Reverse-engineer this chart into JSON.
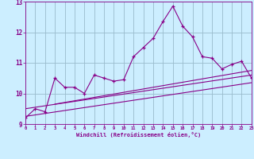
{
  "xlabel": "Windchill (Refroidissement éolien,°C)",
  "xlim": [
    0,
    23
  ],
  "ylim": [
    9.0,
    13.0
  ],
  "yticks": [
    9,
    10,
    11,
    12,
    13
  ],
  "xticks": [
    0,
    1,
    2,
    3,
    4,
    5,
    6,
    7,
    8,
    9,
    10,
    11,
    12,
    13,
    14,
    15,
    16,
    17,
    18,
    19,
    20,
    21,
    22,
    23
  ],
  "bg_color": "#cceeff",
  "line_color": "#880088",
  "grid_color": "#99bbcc",
  "main_x": [
    0,
    1,
    2,
    3,
    4,
    5,
    6,
    7,
    8,
    9,
    10,
    11,
    12,
    13,
    14,
    15,
    16,
    17,
    18,
    19,
    20,
    21,
    22,
    23
  ],
  "main_y": [
    9.2,
    9.5,
    9.4,
    10.5,
    10.2,
    10.2,
    10.0,
    10.6,
    10.5,
    10.4,
    10.45,
    11.2,
    11.5,
    11.8,
    12.35,
    12.85,
    12.2,
    11.85,
    11.2,
    11.15,
    10.8,
    10.95,
    11.05,
    10.5
  ],
  "trend1_x": [
    0,
    23
  ],
  "trend1_y": [
    9.25,
    10.35
  ],
  "trend2_x": [
    0,
    23
  ],
  "trend2_y": [
    9.5,
    10.6
  ],
  "trend3_x": [
    3,
    23
  ],
  "trend3_y": [
    9.65,
    10.75
  ]
}
